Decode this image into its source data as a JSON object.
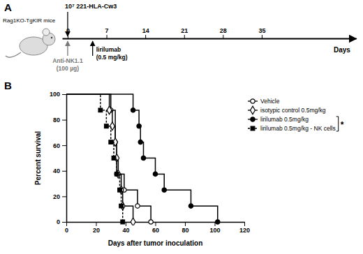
{
  "timeline": {
    "title": "A",
    "subject": "Rag1KO-TgKIR mice",
    "injection": {
      "label": "10⁷ 221-HLA-Cw3",
      "day": 0
    },
    "depletion": {
      "label": [
        "Anti-NK1.1",
        "(100 µg)"
      ],
      "day": 0
    },
    "treatment": {
      "label": [
        "lirilumab",
        "(0.5 mg/kg)"
      ],
      "day": 4.5
    },
    "axis_label": "Days",
    "xlim": [
      -1,
      52
    ],
    "xticks": [
      0,
      7,
      14,
      21,
      28,
      35
    ]
  },
  "chart_data": {
    "type": "line",
    "title": "B",
    "x_label": "Days after tumor inoculation",
    "y_label": "Percent survival",
    "xlim": [
      0,
      120
    ],
    "xticks": [
      0,
      20,
      40,
      60,
      80,
      100,
      120
    ],
    "ylim": [
      0,
      100
    ],
    "yticks": [
      0,
      20,
      40,
      60,
      80,
      100
    ],
    "grid": false,
    "legend": "right",
    "annotation": "*",
    "series": [
      {
        "name": "Vehicle",
        "color": "#000000",
        "marker": "open-circle",
        "line_style": "solid",
        "x": [
          0,
          30,
          33,
          34,
          39,
          48,
          57
        ],
        "values": [
          100,
          87.5,
          62.5,
          37.5,
          25,
          12.5,
          0
        ]
      },
      {
        "name": "isotypic control 0.5mg/kg",
        "color": "#000000",
        "marker": "open-diamond",
        "line_style": "solid",
        "x": [
          0,
          29,
          31,
          33,
          34,
          35,
          37,
          38,
          45
        ],
        "values": [
          100,
          87.5,
          75,
          62.5,
          50,
          37.5,
          25,
          12.5,
          0
        ]
      },
      {
        "name": "lirilumab 0.5mg/kg",
        "color": "#000000",
        "marker": "circle",
        "line_style": "solid",
        "x": [
          0,
          45,
          49,
          50,
          52,
          60,
          66,
          84,
          102
        ],
        "values": [
          100,
          87.5,
          75,
          62.5,
          50,
          37.5,
          25,
          12.5,
          0
        ]
      },
      {
        "name": "lirilumab 0.5mg/kg - NK cells",
        "color": "#000000",
        "marker": "square",
        "line_style": "dashed",
        "x": [
          0,
          23,
          27,
          30,
          32,
          34,
          36,
          37,
          38
        ],
        "values": [
          100,
          87.5,
          75,
          62.5,
          50,
          37.5,
          25,
          12.5,
          0
        ]
      }
    ]
  }
}
